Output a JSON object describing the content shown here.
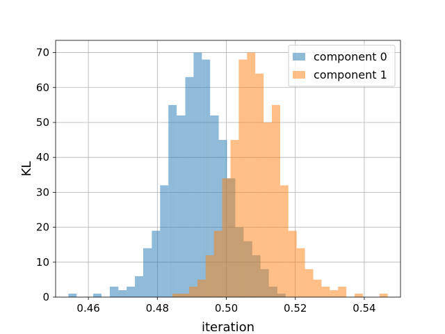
{
  "chart_data": {
    "type": "histogram",
    "title": "",
    "xlabel": "iteration",
    "ylabel": "KL",
    "xlim": [
      0.4505,
      0.5505
    ],
    "ylim": [
      0,
      73.5
    ],
    "grid": true,
    "legend_position": "top-right",
    "x_ticks": [
      0.46,
      0.48,
      0.5,
      0.52,
      0.54
    ],
    "x_tick_labels": [
      "0.46",
      "0.48",
      "0.50",
      "0.52",
      "0.54"
    ],
    "y_ticks": [
      0,
      10,
      20,
      30,
      40,
      50,
      60,
      70
    ],
    "y_tick_labels": [
      "0",
      "10",
      "20",
      "30",
      "40",
      "50",
      "60",
      "70"
    ],
    "series": [
      {
        "name": "component 0",
        "color": "#1f77b4",
        "alpha": 0.5,
        "bins": [
          [
            0.4542,
            0.4566,
            1
          ],
          [
            0.4614,
            0.4638,
            1
          ],
          [
            0.4662,
            0.4687,
            3
          ],
          [
            0.4687,
            0.4711,
            2
          ],
          [
            0.4711,
            0.4735,
            3
          ],
          [
            0.4735,
            0.4759,
            6
          ],
          [
            0.4759,
            0.4784,
            14
          ],
          [
            0.4784,
            0.4808,
            19
          ],
          [
            0.4808,
            0.4832,
            32
          ],
          [
            0.4832,
            0.4856,
            55
          ],
          [
            0.4856,
            0.4881,
            52
          ],
          [
            0.4881,
            0.4905,
            63
          ],
          [
            0.4905,
            0.4929,
            70
          ],
          [
            0.4929,
            0.4953,
            68
          ],
          [
            0.4953,
            0.4978,
            52
          ],
          [
            0.4978,
            0.5002,
            45
          ],
          [
            0.5002,
            0.5026,
            34
          ],
          [
            0.5026,
            0.505,
            20
          ],
          [
            0.505,
            0.5075,
            16
          ],
          [
            0.5075,
            0.5099,
            12
          ],
          [
            0.5099,
            0.5123,
            8
          ],
          [
            0.5123,
            0.5148,
            3
          ],
          [
            0.5148,
            0.5172,
            1
          ]
        ]
      },
      {
        "name": "component 1",
        "color": "#ff7f0e",
        "alpha": 0.5,
        "bins": [
          [
            0.4844,
            0.4868,
            1
          ],
          [
            0.4868,
            0.4892,
            1
          ],
          [
            0.4892,
            0.4916,
            3
          ],
          [
            0.4916,
            0.494,
            5
          ],
          [
            0.494,
            0.4964,
            12
          ],
          [
            0.4964,
            0.4988,
            19
          ],
          [
            0.4988,
            0.5012,
            34
          ],
          [
            0.5012,
            0.5036,
            45
          ],
          [
            0.5036,
            0.506,
            68
          ],
          [
            0.506,
            0.5084,
            70
          ],
          [
            0.5084,
            0.5108,
            64
          ],
          [
            0.5108,
            0.5132,
            50
          ],
          [
            0.5132,
            0.5156,
            55
          ],
          [
            0.5156,
            0.518,
            32
          ],
          [
            0.518,
            0.5204,
            19
          ],
          [
            0.5204,
            0.5228,
            14
          ],
          [
            0.5228,
            0.5252,
            8
          ],
          [
            0.5252,
            0.5276,
            5
          ],
          [
            0.5276,
            0.53,
            3
          ],
          [
            0.53,
            0.5324,
            2
          ],
          [
            0.5324,
            0.5348,
            3
          ],
          [
            0.5372,
            0.5396,
            1
          ],
          [
            0.5444,
            0.5468,
            1
          ]
        ]
      }
    ]
  }
}
